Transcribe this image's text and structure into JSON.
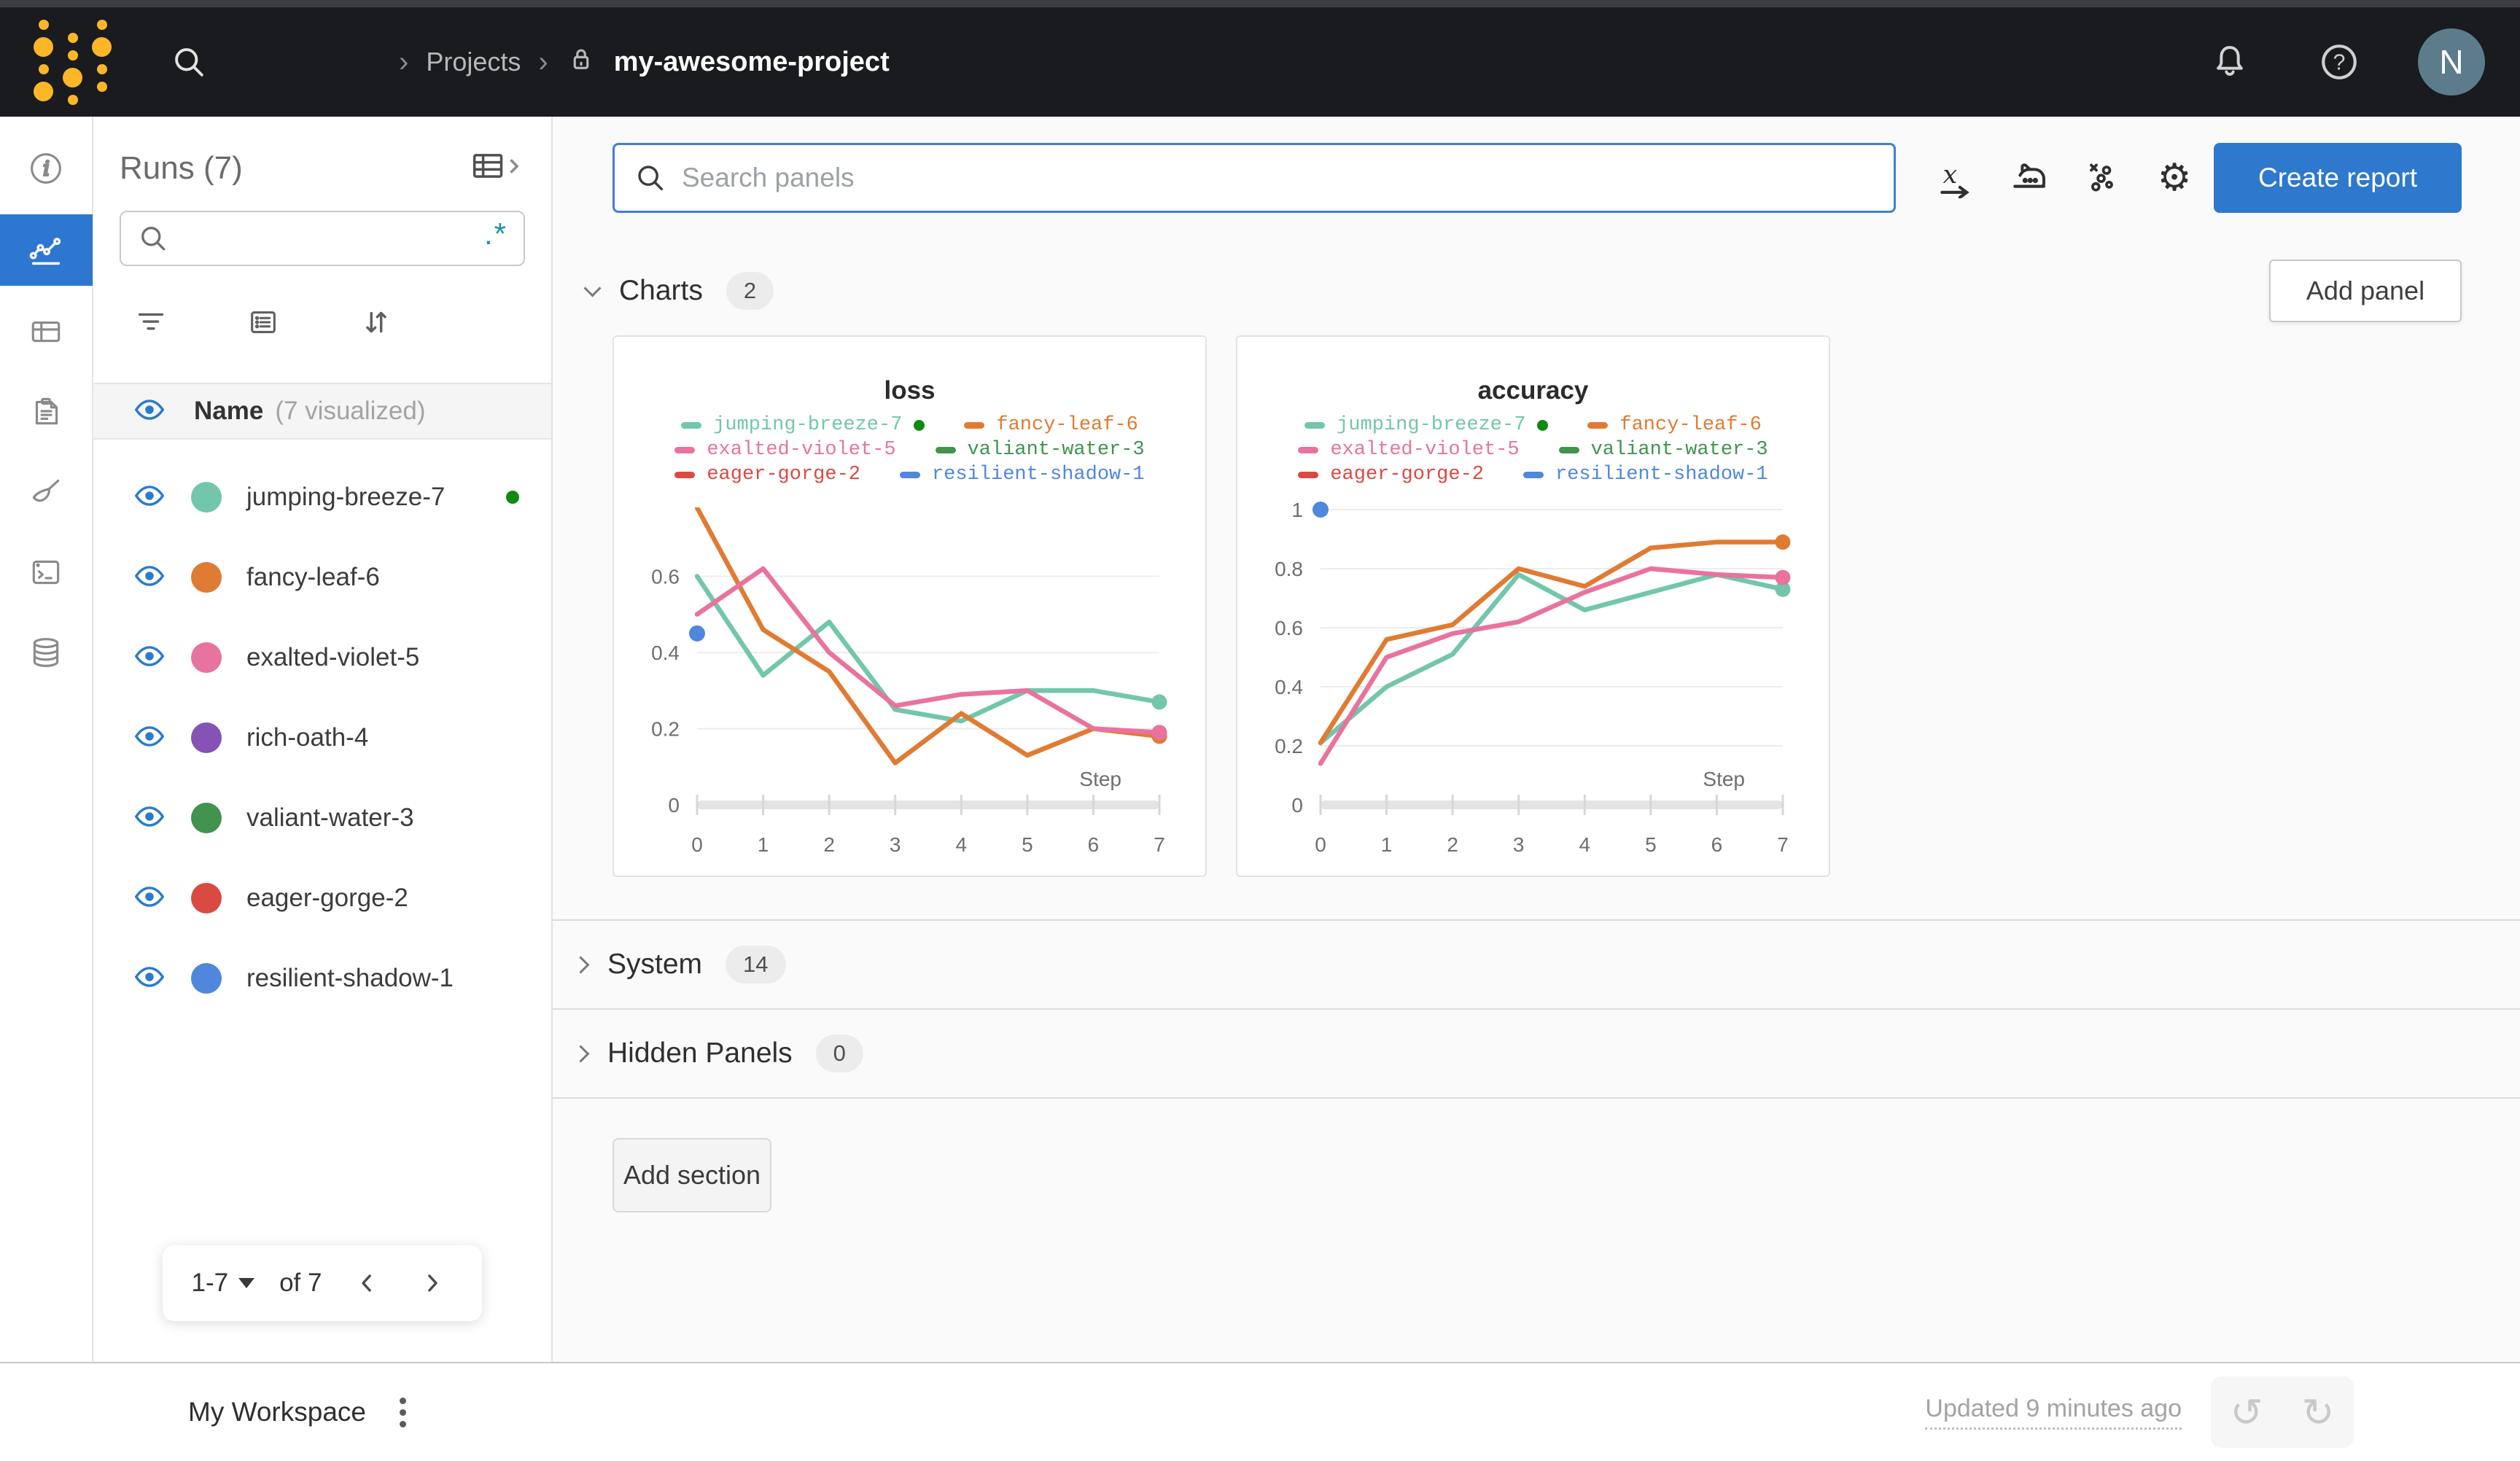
{
  "topbar": {
    "breadcrumb": {
      "separator": "›",
      "projects": "Projects",
      "project_name": "my-awesome-project"
    },
    "help_glyph": "?",
    "avatar_initial": "N"
  },
  "icons": {
    "gear": "⚙",
    "undo": "↺",
    "redo": "↻"
  },
  "colors": {
    "topbar_bg": "#191b1e",
    "accent_blue": "#2e78cd",
    "active_nav_bg": "#2e77d0",
    "eye_blue": "#2b7bc9",
    "regex_teal": "#1593a4",
    "logo_gold": "#fcb628",
    "avatar_bg": "#5d7c8b",
    "running_green": "#0e8a0e"
  },
  "sidebar": {
    "title": "Runs (7)",
    "regex_label": ".*",
    "header": {
      "name_label": "Name",
      "visualized_label": "(7 visualized)"
    },
    "runs": [
      {
        "name": "jumping-breeze-7",
        "color": "#72c6ab",
        "running": true
      },
      {
        "name": "fancy-leaf-6",
        "color": "#e07b33",
        "running": false
      },
      {
        "name": "exalted-violet-5",
        "color": "#e8739f",
        "running": false
      },
      {
        "name": "rich-oath-4",
        "color": "#8552b5",
        "running": false
      },
      {
        "name": "valiant-water-3",
        "color": "#41934f",
        "running": false
      },
      {
        "name": "eager-gorge-2",
        "color": "#d94a42",
        "running": false
      },
      {
        "name": "resilient-shadow-1",
        "color": "#4e87dc",
        "running": false
      }
    ],
    "pagination": {
      "range": "1-7",
      "of_label": "of 7"
    }
  },
  "main": {
    "search": {
      "placeholder": "Search panels"
    },
    "create_report_label": "Create report",
    "sections": [
      {
        "label": "Charts",
        "count": "2"
      },
      {
        "label": "System",
        "count": "14"
      },
      {
        "label": "Hidden Panels",
        "count": "0"
      }
    ],
    "add_panel_label": "Add panel",
    "add_section_label": "Add section"
  },
  "footer": {
    "workspace_label": "My Workspace",
    "updated_label": "Updated 9 minutes ago"
  },
  "chart_data": [
    {
      "type": "line",
      "title": "loss",
      "xlabel": "Step",
      "x": [
        0,
        1,
        2,
        3,
        4,
        5,
        6,
        7
      ],
      "xlim": [
        0,
        7
      ],
      "ylim": [
        0,
        0.775
      ],
      "yticks": [
        0.2,
        0.4,
        0.6
      ],
      "ytick_labels": [
        "0.2",
        "0.4",
        "0.6"
      ],
      "y_zero_label": "0",
      "xtick_labels": [
        "0",
        "1",
        "2",
        "3",
        "4",
        "5",
        "6",
        "7"
      ],
      "grid": true,
      "legend_position": "top",
      "series": [
        {
          "name": "jumping-breeze-7",
          "color": "#72c6ab",
          "running": true,
          "values": [
            0.6,
            0.34,
            0.48,
            0.25,
            0.22,
            0.3,
            0.3,
            0.27
          ]
        },
        {
          "name": "fancy-leaf-6",
          "color": "#e07b33",
          "running": false,
          "values": [
            0.78,
            0.46,
            0.35,
            0.11,
            0.24,
            0.13,
            0.2,
            0.18
          ]
        },
        {
          "name": "exalted-violet-5",
          "color": "#e8739f",
          "running": false,
          "values": [
            0.5,
            0.62,
            0.4,
            0.26,
            0.29,
            0.3,
            0.2,
            0.19
          ]
        },
        {
          "name": "valiant-water-3",
          "color": "#41934f",
          "running": false,
          "values": []
        },
        {
          "name": "eager-gorge-2",
          "color": "#d94a42",
          "running": false,
          "values": []
        },
        {
          "name": "resilient-shadow-1",
          "color": "#4e87dc",
          "running": false,
          "values": [
            0.45
          ]
        }
      ]
    },
    {
      "type": "line",
      "title": "accuracy",
      "xlabel": "Step",
      "x": [
        0,
        1,
        2,
        3,
        4,
        5,
        6,
        7
      ],
      "xlim": [
        0,
        7
      ],
      "ylim": [
        0,
        1.0
      ],
      "yticks": [
        0.2,
        0.4,
        0.6,
        0.8,
        1.0
      ],
      "ytick_labels": [
        "0.2",
        "0.4",
        "0.6",
        "0.8",
        "1"
      ],
      "y_zero_label": "0",
      "xtick_labels": [
        "0",
        "1",
        "2",
        "3",
        "4",
        "5",
        "6",
        "7"
      ],
      "grid": true,
      "legend_position": "top",
      "series": [
        {
          "name": "jumping-breeze-7",
          "color": "#72c6ab",
          "running": true,
          "values": [
            0.21,
            0.4,
            0.51,
            0.78,
            0.66,
            0.72,
            0.78,
            0.73
          ]
        },
        {
          "name": "fancy-leaf-6",
          "color": "#e07b33",
          "running": false,
          "values": [
            0.21,
            0.56,
            0.61,
            0.8,
            0.74,
            0.87,
            0.89,
            0.89
          ]
        },
        {
          "name": "exalted-violet-5",
          "color": "#e8739f",
          "running": false,
          "values": [
            0.14,
            0.5,
            0.58,
            0.62,
            0.72,
            0.8,
            0.78,
            0.77
          ]
        },
        {
          "name": "valiant-water-3",
          "color": "#41934f",
          "running": false,
          "values": []
        },
        {
          "name": "eager-gorge-2",
          "color": "#d94a42",
          "running": false,
          "values": []
        },
        {
          "name": "resilient-shadow-1",
          "color": "#4e87dc",
          "running": false,
          "values": [
            1.0
          ]
        }
      ]
    }
  ]
}
